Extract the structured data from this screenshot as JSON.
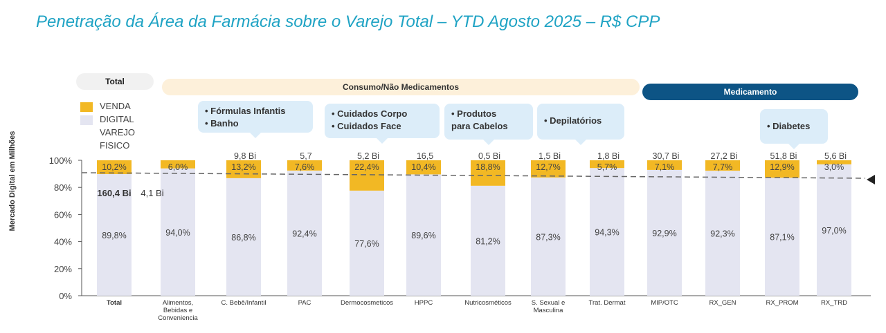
{
  "title": "Penetração da Área da Farmácia sobre o Varejo Total – YTD Agosto 2025 – R$ CPP",
  "groups": {
    "total": "Total",
    "consumo": "Consumo/Não Medicamentos",
    "medicamento": "Medicamento"
  },
  "callouts": [
    {
      "lines": [
        "• Fórmulas Infantis",
        "• Banho"
      ]
    },
    {
      "lines": [
        "•   Cuidados Corpo",
        "•   Cuidados Face"
      ]
    },
    {
      "lines": [
        "• Produtos",
        "  para Cabelos"
      ]
    },
    {
      "lines": [
        "• Depilatórios"
      ]
    },
    {
      "lines": [
        "• Diabetes"
      ]
    }
  ],
  "chart_data": {
    "type": "bar",
    "stacked": true,
    "ylabel": "Mercado Digital em Milhões",
    "ylim": [
      0,
      100
    ],
    "yticks": [
      "0%",
      "20%",
      "40%",
      "60%",
      "80%",
      "100%"
    ],
    "legend": [
      {
        "name": "VENDA DIGITAL",
        "color": "#f2b824"
      },
      {
        "name": "VAREJO FISICO",
        "color": "#e4e5f1"
      }
    ],
    "categories": [
      "Total",
      "Alimentos, Bebidas e Conveniencia",
      "C. Bebê/Infantil",
      "PAC",
      "Dermocosmeticos",
      "HPPC",
      "Nutricosméticos",
      "S. Sexual e Masculina",
      "Trat. Dermat",
      "MIP/OTC",
      "RX_GEN",
      "RX_PROM",
      "RX_TRD"
    ],
    "series": [
      {
        "name": "VAREJO FISICO",
        "values": [
          89.8,
          94.0,
          86.8,
          92.4,
          77.6,
          89.6,
          81.2,
          87.3,
          94.3,
          92.9,
          92.3,
          87.1,
          97.0
        ],
        "labels": [
          "89,8%",
          "94,0%",
          "86,8%",
          "92,4%",
          "77,6%",
          "89,6%",
          "81,2%",
          "87,3%",
          "94,3%",
          "92,9%",
          "92,3%",
          "87,1%",
          "97,0%"
        ]
      },
      {
        "name": "VENDA DIGITAL",
        "values": [
          10.2,
          6.0,
          13.2,
          7.6,
          22.4,
          10.4,
          18.8,
          12.7,
          5.7,
          7.1,
          7.7,
          12.9,
          3.0
        ],
        "labels": [
          "10,2%",
          "6,0%",
          "13,2%",
          "7,6%",
          "22,4%",
          "10,4%",
          "18,8%",
          "12,7%",
          "5,7%",
          "7,1%",
          "7,7%",
          "12,9%",
          "3,0%"
        ]
      }
    ],
    "market_size": [
      "160,4 Bi",
      "4,1 Bi",
      "9,8 Bi",
      "5,7",
      "5,2 Bi",
      "16,5",
      "0,5 Bi",
      "1,5 Bi",
      "1,8 Bi",
      "30,7 Bi",
      "27,2 Bi",
      "51,8 Bi",
      "5,6 Bi"
    ],
    "reference_line": 89.8
  }
}
